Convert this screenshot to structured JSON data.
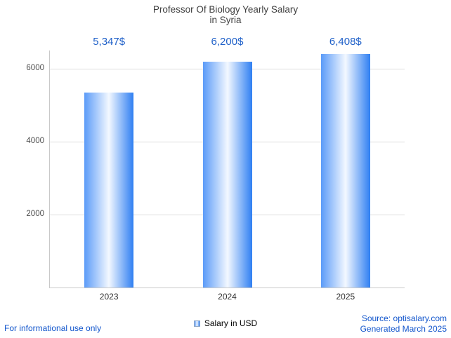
{
  "title": {
    "line1": "Professor Of Biology Yearly Salary",
    "line2": "in Syria"
  },
  "chart_data": {
    "type": "bar",
    "title": "Professor Of Biology Yearly Salary in Syria",
    "categories": [
      "2023",
      "2024",
      "2025"
    ],
    "values": [
      5347,
      6200,
      6408
    ],
    "value_labels": [
      "5,347$",
      "6,200$",
      "6,408$"
    ],
    "series_name": "Salary in USD",
    "xlabel": "",
    "ylabel": "",
    "ylim": [
      0,
      6500
    ],
    "yticks": [
      2000,
      4000,
      6000
    ],
    "grid": "horizontal",
    "legend_position": "bottom",
    "bar_gradient": [
      "#5b9bf8",
      "#f3f8ff",
      "#2f7ff2"
    ],
    "value_label_color": "#2061c9",
    "axis_color": "#c9c9c9",
    "gridline_color": "#dcdcdc",
    "tick_color": "#4d4d4d"
  },
  "legend": {
    "label": "Salary in USD"
  },
  "footer": {
    "disclaimer": "For informational use only",
    "source": "Source: optisalary.com",
    "generated": "Generated March 2025",
    "link_color": "#1155cc"
  }
}
